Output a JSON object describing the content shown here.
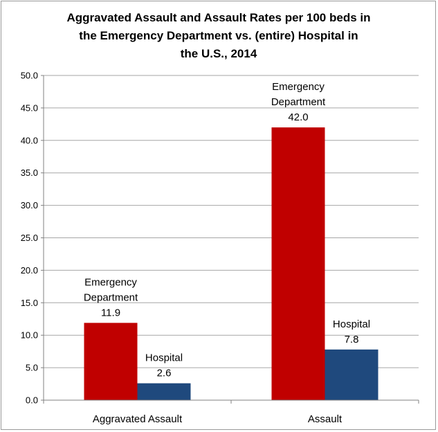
{
  "chart_data": {
    "type": "bar",
    "title_lines": [
      "Aggravated Assault and Assault Rates per 100 beds in",
      "the Emergency Department vs. (entire) Hospital in",
      "the U.S., 2014"
    ],
    "categories": [
      "Aggravated Assault",
      "Assault"
    ],
    "series": [
      {
        "name": "Emergency Department",
        "label_lines": [
          "Emergency",
          "Department"
        ],
        "color": "#c00000",
        "values": [
          11.9,
          42.0
        ],
        "value_labels": [
          "11.9",
          "42.0"
        ]
      },
      {
        "name": "Hospital",
        "label_lines": [
          "Hospital"
        ],
        "color": "#1f497d",
        "values": [
          2.6,
          7.8
        ],
        "value_labels": [
          "2.6",
          "7.8"
        ]
      }
    ],
    "ylim": [
      0,
      50
    ],
    "yticks": [
      "0.0",
      "5.0",
      "10.0",
      "15.0",
      "20.0",
      "25.0",
      "30.0",
      "35.0",
      "40.0",
      "45.0",
      "50.0"
    ],
    "grid": true,
    "legend": "none"
  }
}
